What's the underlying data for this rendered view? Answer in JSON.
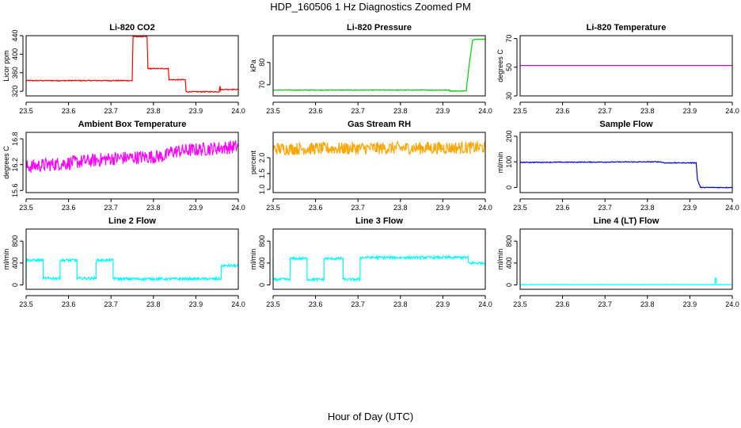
{
  "page": {
    "title": "HDP_160506  1 Hz Diagnostics Zoomed PM",
    "xlabel": "Hour of Day (UTC)"
  },
  "chart_data": [
    {
      "type": "line",
      "title": "Li-820 CO2",
      "ylabel": "Licor ppm",
      "color": "#ff0000",
      "xlim": [
        23.5,
        24.0
      ],
      "ylim": [
        310,
        440
      ],
      "xticks": [
        "23.5",
        "23.6",
        "23.7",
        "23.8",
        "23.9",
        "24.0"
      ],
      "yticks": [
        320,
        360,
        400,
        440
      ],
      "series": [
        {
          "x": [
            23.5,
            23.75,
            23.752,
            23.785,
            23.787,
            23.835,
            23.837,
            23.875,
            23.877,
            23.955,
            23.957,
            23.958,
            23.96,
            23.962,
            24.0
          ],
          "y": [
            343,
            343,
            438,
            438,
            369,
            369,
            345,
            345,
            319,
            319,
            332,
            322,
            324,
            324,
            324
          ],
          "noise": 1
        }
      ]
    },
    {
      "type": "line",
      "title": "Li-820 Pressure",
      "ylabel": "kPa",
      "color": "#00cc00",
      "xlim": [
        23.5,
        24.0
      ],
      "ylim": [
        65,
        92
      ],
      "xticks": [
        "23.5",
        "23.6",
        "23.7",
        "23.8",
        "23.9",
        "24.0"
      ],
      "yticks": [
        70,
        80
      ],
      "series": [
        {
          "x": [
            23.5,
            23.915,
            23.917,
            23.955,
            23.962,
            23.97,
            23.98,
            24.0
          ],
          "y": [
            67.6,
            67.6,
            67.2,
            67.2,
            79,
            90,
            90.4,
            90.4
          ],
          "noise": 0.15
        }
      ]
    },
    {
      "type": "line",
      "title": "Li-820 Temperature",
      "ylabel": "degrees C",
      "color": "#cc00cc",
      "xlim": [
        23.5,
        24.0
      ],
      "ylim": [
        30,
        72
      ],
      "xticks": [
        "23.5",
        "23.6",
        "23.7",
        "23.8",
        "23.9",
        "24.0"
      ],
      "yticks": [
        30,
        50,
        70
      ],
      "series": [
        {
          "x": [
            23.5,
            24.0
          ],
          "y": [
            51.2,
            51.2
          ],
          "noise": 0
        }
      ]
    },
    {
      "type": "line",
      "title": "Ambient Box Temperature",
      "ylabel": "degrees C",
      "color": "#ff00ff",
      "xlim": [
        23.5,
        24.0
      ],
      "ylim": [
        15.55,
        16.95
      ],
      "xticks": [
        "23.5",
        "23.6",
        "23.7",
        "23.8",
        "23.9",
        "24.0"
      ],
      "yticks": [
        15.6,
        16.2,
        16.8
      ],
      "series": [
        {
          "x": [
            23.5,
            23.6,
            23.7,
            23.83,
            23.84,
            24.0
          ],
          "y": [
            16.15,
            16.24,
            16.34,
            16.4,
            16.5,
            16.62
          ],
          "noise": 0.16
        }
      ]
    },
    {
      "type": "line",
      "title": "Gas Stream RH",
      "ylabel": "percent",
      "color": "#ffa500",
      "xlim": [
        23.5,
        24.0
      ],
      "ylim": [
        0.9,
        2.8
      ],
      "xticks": [
        "23.5",
        "23.6",
        "23.7",
        "23.8",
        "23.9",
        "24.0"
      ],
      "yticks": [
        1.0,
        1.5,
        2.0
      ],
      "series": [
        {
          "x": [
            23.5,
            24.0
          ],
          "y": [
            2.28,
            2.32
          ],
          "noise": 0.2
        }
      ]
    },
    {
      "type": "line",
      "title": "Sample Flow",
      "ylabel": "ml/min",
      "color": "#0000cc",
      "xlim": [
        23.5,
        24.0
      ],
      "ylim": [
        -20,
        215
      ],
      "xticks": [
        "23.5",
        "23.6",
        "23.7",
        "23.8",
        "23.9",
        "24.0"
      ],
      "yticks": [
        0,
        100,
        200
      ],
      "series": [
        {
          "x": [
            23.5,
            23.83,
            23.84,
            23.915,
            23.918,
            23.925,
            24.0
          ],
          "y": [
            98,
            100,
            96,
            96,
            30,
            0,
            0
          ],
          "noise": 1.5
        }
      ]
    },
    {
      "type": "line",
      "title": "Line 2 Flow",
      "ylabel": "ml/min",
      "color": "#00ffff",
      "xlim": [
        23.5,
        24.0
      ],
      "ylim": [
        -80,
        1020
      ],
      "xticks": [
        "23.5",
        "23.6",
        "23.7",
        "23.8",
        "23.9",
        "24.0"
      ],
      "yticks": [
        0,
        400,
        800
      ],
      "series": [
        {
          "x": [
            23.5,
            23.5,
            23.54,
            23.54,
            23.58,
            23.58,
            23.62,
            23.62,
            23.665,
            23.665,
            23.705,
            23.705,
            23.72,
            23.96,
            23.96,
            24.0
          ],
          "y": [
            120,
            450,
            450,
            120,
            120,
            450,
            450,
            120,
            120,
            450,
            450,
            120,
            110,
            110,
            350,
            350
          ],
          "noise": 25
        }
      ]
    },
    {
      "type": "line",
      "title": "Line 3 Flow",
      "ylabel": "ml/min",
      "color": "#00ffff",
      "xlim": [
        23.5,
        24.0
      ],
      "ylim": [
        -80,
        1020
      ],
      "xticks": [
        "23.5",
        "23.6",
        "23.7",
        "23.8",
        "23.9",
        "24.0"
      ],
      "yticks": [
        0,
        400,
        800
      ],
      "series": [
        {
          "x": [
            23.5,
            23.5,
            23.503,
            23.503,
            23.54,
            23.54,
            23.58,
            23.58,
            23.62,
            23.62,
            23.665,
            23.665,
            23.705,
            23.705,
            23.96,
            23.96,
            24.0
          ],
          "y": [
            480,
            100,
            100,
            100,
            100,
            480,
            480,
            100,
            100,
            480,
            480,
            100,
            100,
            500,
            500,
            400,
            400
          ],
          "noise": 25
        }
      ]
    },
    {
      "type": "line",
      "title": "Line 4 (LT) Flow",
      "ylabel": "ml/min",
      "color": "#00ffff",
      "xlim": [
        23.5,
        24.0
      ],
      "ylim": [
        -80,
        1020
      ],
      "xticks": [
        "23.5",
        "23.6",
        "23.7",
        "23.8",
        "23.9",
        "24.0"
      ],
      "yticks": [
        0,
        400,
        800
      ],
      "series": [
        {
          "x": [
            23.5,
            23.959,
            23.96,
            23.962,
            23.963,
            24.0
          ],
          "y": [
            5,
            5,
            120,
            120,
            5,
            5
          ],
          "noise": 3
        }
      ]
    }
  ]
}
